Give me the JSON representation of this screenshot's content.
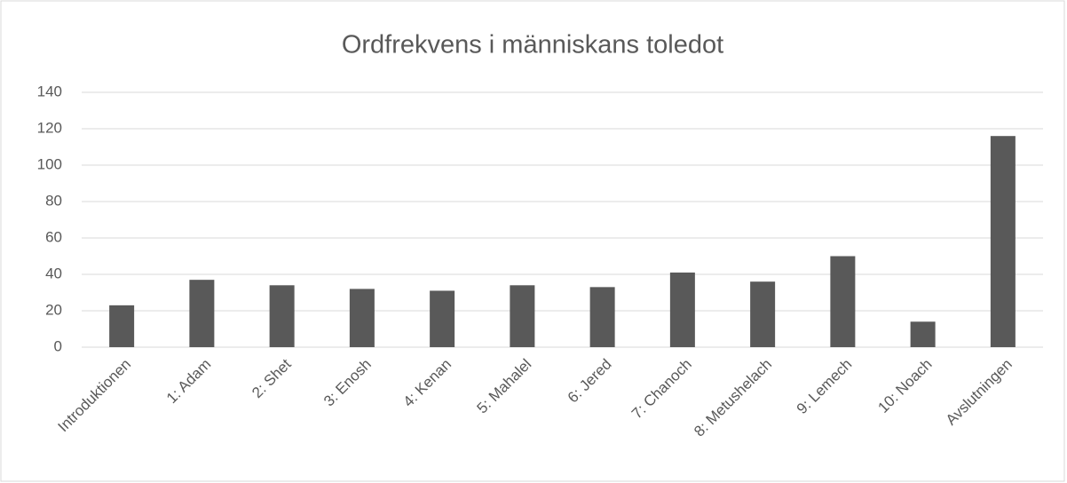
{
  "chart_data": {
    "type": "bar",
    "title": "Ordfrekvens i människans toledot",
    "categories": [
      "Introduktionen",
      "1: Adam",
      "2: Shet",
      "3: Enosh",
      "4: Kenan",
      "5: Mahalel",
      "6: Jered",
      "7: Chanoch",
      "8: Metushelach",
      "9: Lemech",
      "10: Noach",
      "Avslutningen"
    ],
    "values": [
      23,
      37,
      34,
      32,
      31,
      34,
      33,
      41,
      36,
      50,
      14,
      116
    ],
    "color": "#595959",
    "ylim": [
      0,
      140
    ],
    "yticks": [
      0,
      20,
      40,
      60,
      80,
      100,
      120,
      140
    ],
    "grid": true
  }
}
